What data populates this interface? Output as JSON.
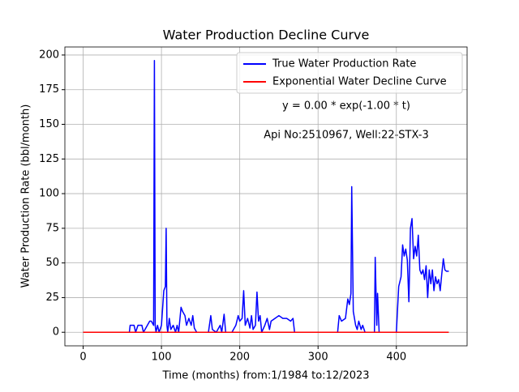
{
  "chart_data": {
    "type": "line",
    "title": "Water Production Decline Curve",
    "xlabel": "Time (months) from:1/1984 to:12/2023",
    "ylabel": "Water Production Rate (bbl/month)",
    "annotations": [
      "y = 0.00 * exp(-1.00 * t)",
      "Api No:2510967, Well:22-STX-3"
    ],
    "xlim": [
      -23.35,
      490.35
    ],
    "xticks": [
      0,
      100,
      200,
      300,
      400
    ],
    "ylim": [
      -9.8,
      205.8
    ],
    "yticks": [
      0,
      25,
      50,
      75,
      100,
      125,
      150,
      175,
      200
    ],
    "grid": true,
    "legend": "upper right",
    "series": [
      {
        "name": "True Water Production Rate",
        "color": "#0000ff",
        "x": [
          0,
          59,
          60,
          65,
          67,
          70,
          75,
          77,
          85,
          87,
          90,
          91,
          92,
          93,
          95,
          97,
          100,
          103,
          105,
          106,
          107,
          108,
          110,
          112,
          115,
          118,
          120,
          122,
          125,
          127,
          130,
          132,
          135,
          138,
          140,
          142,
          145,
          160,
          163,
          165,
          170,
          175,
          177,
          180,
          182,
          190,
          195,
          198,
          200,
          203,
          205,
          207,
          210,
          213,
          215,
          217,
          220,
          222,
          224,
          226,
          228,
          232,
          235,
          238,
          240,
          245,
          250,
          255,
          260,
          265,
          268,
          270,
          325,
          327,
          330,
          335,
          338,
          340,
          342,
          343,
          345,
          348,
          350,
          352,
          355,
          357,
          360,
          372,
          373,
          375,
          376,
          378,
          400,
          403,
          406,
          408,
          410,
          412,
          414,
          416,
          418,
          420,
          422,
          424,
          426,
          428,
          430,
          432,
          434,
          436,
          438,
          440,
          442,
          444,
          446,
          448,
          450,
          452,
          454,
          456,
          458,
          460,
          462,
          464,
          467
        ],
        "values": [
          0,
          0,
          5,
          5,
          0,
          5,
          5,
          0,
          8,
          8,
          5,
          196,
          5,
          0,
          5,
          0,
          5,
          30,
          33,
          75,
          5,
          0,
          10,
          2,
          5,
          0,
          5,
          0,
          18,
          15,
          12,
          5,
          10,
          5,
          12,
          3,
          0,
          0,
          12,
          2,
          0,
          5,
          0,
          13,
          0,
          0,
          5,
          12,
          8,
          10,
          30,
          5,
          10,
          3,
          12,
          2,
          5,
          29,
          8,
          12,
          0,
          5,
          10,
          2,
          8,
          10,
          12,
          10,
          10,
          8,
          10,
          0,
          0,
          12,
          8,
          10,
          24,
          20,
          28,
          105,
          15,
          5,
          2,
          8,
          2,
          5,
          0,
          0,
          54,
          5,
          28,
          0,
          0,
          33,
          40,
          63,
          55,
          60,
          52,
          22,
          75,
          82,
          53,
          62,
          55,
          70,
          45,
          42,
          45,
          38,
          48,
          25,
          45,
          35,
          45,
          30,
          40,
          35,
          38,
          30,
          42,
          53,
          45,
          44,
          44
        ]
      },
      {
        "name": "Exponential Water Decline Curve",
        "color": "#ff0000",
        "x": [
          0,
          467
        ],
        "values": [
          0,
          0
        ]
      }
    ]
  }
}
